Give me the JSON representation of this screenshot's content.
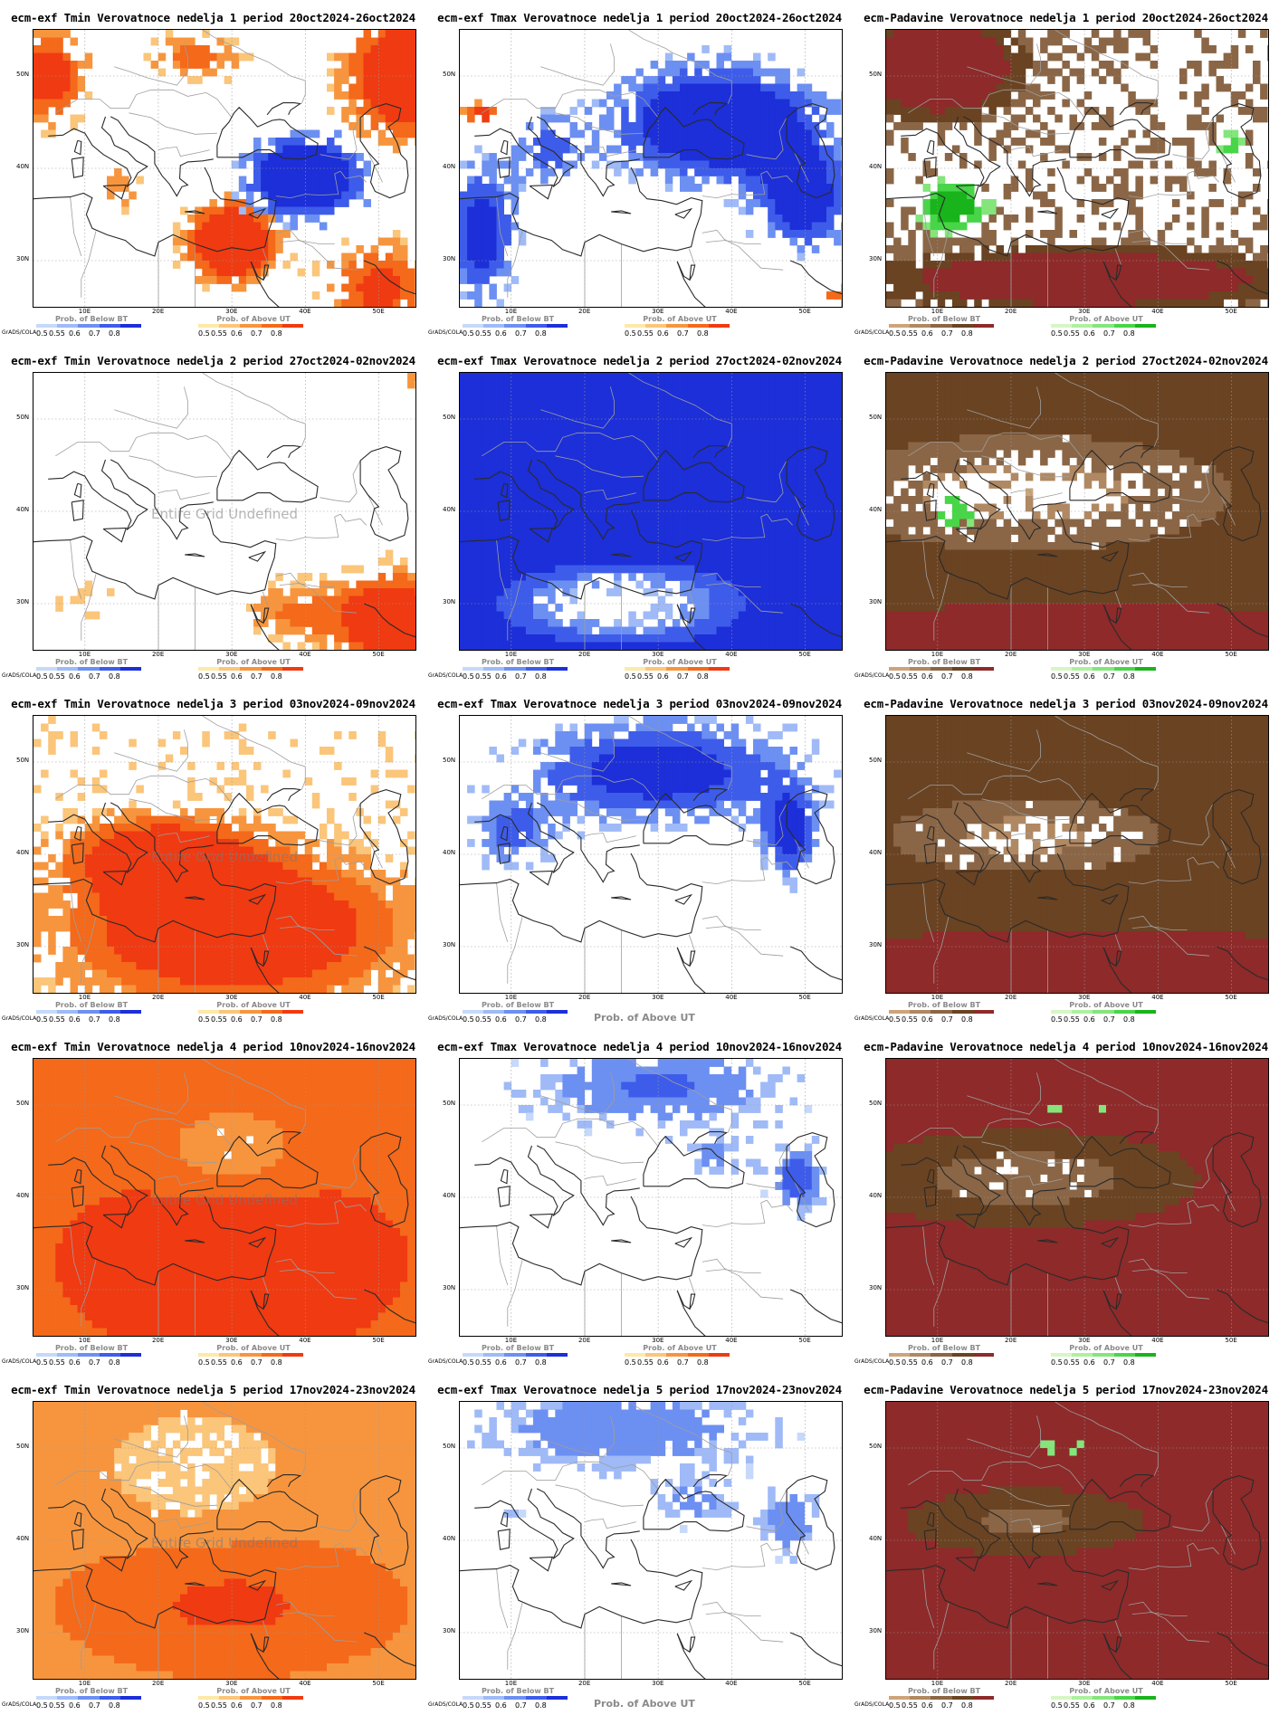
{
  "figure": {
    "lat_ticks": [
      "30N",
      "40N",
      "50N"
    ],
    "lon_ticks": [
      "10E",
      "20E",
      "30E",
      "40E",
      "50E"
    ],
    "grads_label": "GrADS/COLA",
    "undefined_text": "Entire Grid Undefined",
    "legend_ticks": [
      "0.5",
      "0.55",
      "0.6",
      "0.7",
      "0.8"
    ],
    "legend_below": "Prob. of Below BT",
    "legend_above": "Prob. of Above UT",
    "colors": {
      "tmin_above": [
        "#fde9a9",
        "#fbc57a",
        "#f7953e",
        "#f4691a",
        "#f03a12"
      ],
      "tmax_below": [
        "#c6d9fa",
        "#9fbaf7",
        "#6c8ff2",
        "#3e5cea",
        "#1c2fd8"
      ],
      "precip_below": [
        "#cda47a",
        "#b08862",
        "#8a6646",
        "#6a4322",
        "#8e2a2a"
      ],
      "precip_above": [
        "#d6f6c6",
        "#aef0a0",
        "#84e57c",
        "#48d548",
        "#19b41c"
      ],
      "coast": "#2a2a2a",
      "border": "#9e9e9e"
    }
  },
  "panels": [
    {
      "title": "ecm-exf Tmin Verovatnoce nedelja 1 period 20oct2024-26oct2024",
      "kind": "tmin",
      "week": 1,
      "undefined": false,
      "below_bar": "tmax_below",
      "above_bar": "tmin_above",
      "big_above_label": false
    },
    {
      "title": "ecm-exf Tmax Verovatnoce nedelja 1 period 20oct2024-26oct2024",
      "kind": "tmax",
      "week": 1,
      "undefined": false,
      "below_bar": "tmax_below",
      "above_bar": "tmin_above",
      "big_above_label": false
    },
    {
      "title": "ecm-Padavine Verovatnoce nedelja 1 period 20oct2024-26oct2024",
      "kind": "precip",
      "week": 1,
      "undefined": false,
      "below_bar": "precip_below",
      "above_bar": "precip_above",
      "big_above_label": false
    },
    {
      "title": "ecm-exf Tmin Verovatnoce nedelja 2 period 27oct2024-02nov2024",
      "kind": "tmin",
      "week": 2,
      "undefined": true,
      "below_bar": "tmax_below",
      "above_bar": "tmin_above",
      "big_above_label": false
    },
    {
      "title": "ecm-exf Tmax Verovatnoce nedelja 2 period 27oct2024-02nov2024",
      "kind": "tmax",
      "week": 2,
      "undefined": false,
      "below_bar": "tmax_below",
      "above_bar": "tmin_above",
      "big_above_label": false
    },
    {
      "title": "ecm-Padavine Verovatnoce nedelja 2 period 27oct2024-02nov2024",
      "kind": "precip",
      "week": 2,
      "undefined": false,
      "below_bar": "precip_below",
      "above_bar": "precip_above",
      "big_above_label": false
    },
    {
      "title": "ecm-exf Tmin Verovatnoce nedelja 3 period 03nov2024-09nov2024",
      "kind": "tmin",
      "week": 3,
      "undefined": true,
      "below_bar": "tmax_below",
      "above_bar": "tmin_above",
      "big_above_label": false
    },
    {
      "title": "ecm-exf Tmax Verovatnoce nedelja 3 period 03nov2024-09nov2024",
      "kind": "tmax",
      "week": 3,
      "undefined": false,
      "below_bar": "tmax_below",
      "above_bar": "tmin_above",
      "big_above_label": true
    },
    {
      "title": "ecm-Padavine Verovatnoce nedelja 3 period 03nov2024-09nov2024",
      "kind": "precip",
      "week": 3,
      "undefined": false,
      "below_bar": "precip_below",
      "above_bar": "precip_above",
      "big_above_label": false
    },
    {
      "title": "ecm-exf Tmin Verovatnoce nedelja 4 period 10nov2024-16nov2024",
      "kind": "tmin",
      "week": 4,
      "undefined": true,
      "below_bar": "tmax_below",
      "above_bar": "tmin_above",
      "big_above_label": false
    },
    {
      "title": "ecm-exf Tmax Verovatnoce nedelja 4 period 10nov2024-16nov2024",
      "kind": "tmax",
      "week": 4,
      "undefined": false,
      "below_bar": "tmax_below",
      "above_bar": "tmin_above",
      "big_above_label": false
    },
    {
      "title": "ecm-Padavine Verovatnoce nedelja 4 period 10nov2024-16nov2024",
      "kind": "precip",
      "week": 4,
      "undefined": false,
      "below_bar": "precip_below",
      "above_bar": "precip_above",
      "big_above_label": false
    },
    {
      "title": "ecm-exf Tmin Verovatnoce nedelja 5 period 17nov2024-23nov2024",
      "kind": "tmin",
      "week": 5,
      "undefined": true,
      "below_bar": "tmax_below",
      "above_bar": "tmin_above",
      "big_above_label": false
    },
    {
      "title": "ecm-exf Tmax Verovatnoce nedelja 5 period 17nov2024-23nov2024",
      "kind": "tmax",
      "week": 5,
      "undefined": false,
      "below_bar": "tmax_below",
      "above_bar": "tmin_above",
      "big_above_label": true
    },
    {
      "title": "ecm-Padavine Verovatnoce nedelja 5 period 17nov2024-23nov2024",
      "kind": "precip",
      "week": 5,
      "undefined": false,
      "below_bar": "precip_below",
      "above_bar": "precip_above",
      "big_above_label": false
    }
  ]
}
